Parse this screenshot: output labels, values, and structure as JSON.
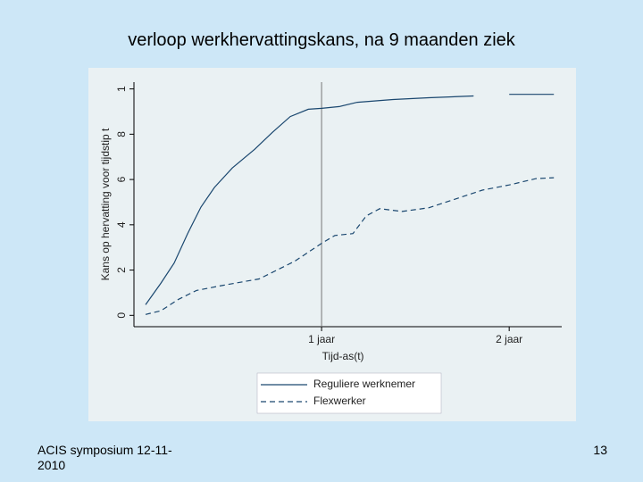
{
  "chart_data": {
    "type": "line",
    "title": "verloop werkhervattingskans, na 9 maanden ziek",
    "x_label": "Tijd-as(t)",
    "y_label": "Kans op hervatting voor tijdstip t",
    "xlim": [
      0,
      2.28
    ],
    "ylim": [
      -0.05,
      1.03
    ],
    "xticks": [
      {
        "value": 1,
        "label": "1 jaar"
      },
      {
        "value": 2,
        "label": "2 jaar"
      }
    ],
    "yticks": [
      0,
      {
        "value": 0.2,
        "label": "2"
      },
      {
        "value": 0.4,
        "label": "4"
      },
      {
        "value": 0.6,
        "label": "6"
      },
      {
        "value": 0.8,
        "label": "8"
      },
      1
    ],
    "vline": 1,
    "series": [
      {
        "name": "Reguliere werknemer",
        "color": "#1a476f",
        "dash": "solid",
        "x": [
          0.062,
          0.143,
          0.214,
          0.286,
          0.357,
          0.429,
          0.524,
          0.643,
          0.738,
          0.833,
          0.929,
          1.0,
          1.095,
          1.19,
          1.381,
          1.571,
          1.81,
          1.9,
          2.0,
          2.238
        ],
        "values": [
          0.047,
          0.141,
          0.231,
          0.361,
          0.478,
          0.565,
          0.651,
          0.733,
          0.808,
          0.878,
          0.91,
          0.914,
          0.922,
          0.941,
          0.953,
          0.961,
          0.969,
          null,
          0.976,
          0.976
        ]
      },
      {
        "name": "Flexwerker",
        "color": "#1a476f",
        "dash": "dashed",
        "x": [
          0.062,
          0.143,
          0.238,
          0.333,
          0.476,
          0.667,
          0.857,
          1.0,
          1.071,
          1.167,
          1.238,
          1.31,
          1.429,
          1.571,
          1.714,
          1.857,
          2.0,
          2.143,
          2.238
        ],
        "values": [
          0.004,
          0.02,
          0.071,
          0.11,
          0.133,
          0.161,
          0.239,
          0.318,
          0.353,
          0.361,
          0.439,
          0.471,
          0.459,
          0.475,
          0.514,
          0.553,
          0.576,
          0.604,
          0.608
        ]
      }
    ]
  },
  "footer": "ACIS symposium 12-11-2010",
  "page_number": "13"
}
